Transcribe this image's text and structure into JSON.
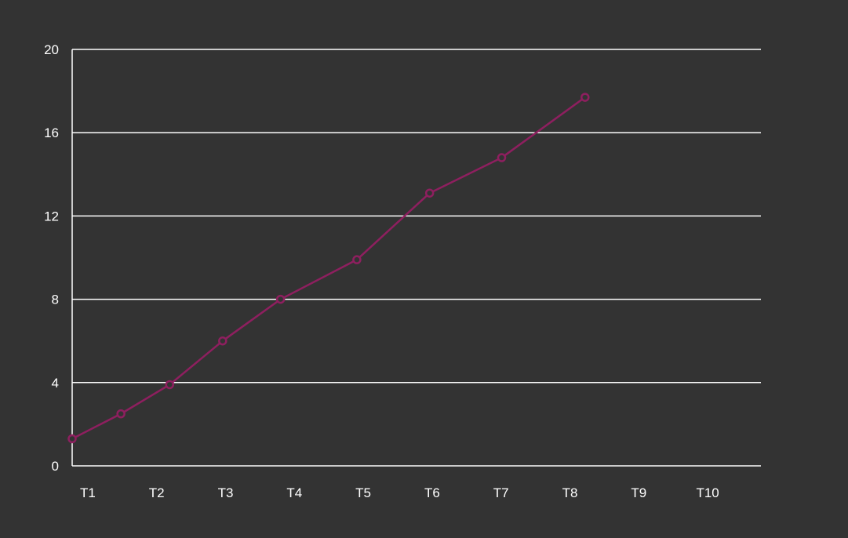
{
  "theme": {
    "background": "#333333",
    "gridline": "#ffffff",
    "axis": "#ffffff",
    "text": "#ffffff",
    "series_color": "#8e1f5f"
  },
  "chart_data": {
    "type": "line",
    "x_tick_labels": [
      "T1",
      "T2",
      "T3",
      "T4",
      "T5",
      "T6",
      "T7",
      "T8",
      "T9",
      "T10"
    ],
    "xlim": [
      0,
      9.75
    ],
    "y_ticks": [
      0,
      4,
      8,
      12,
      16,
      20
    ],
    "ylim": [
      0,
      20
    ],
    "grid": true,
    "series": [
      {
        "x": [
          0,
          0.69,
          1.38,
          2.13,
          2.95,
          4.03,
          5.06,
          6.08,
          7.26
        ],
        "y": [
          1.3,
          2.5,
          3.9,
          6.0,
          8.0,
          9.9,
          13.1,
          14.8,
          17.7
        ]
      }
    ]
  }
}
